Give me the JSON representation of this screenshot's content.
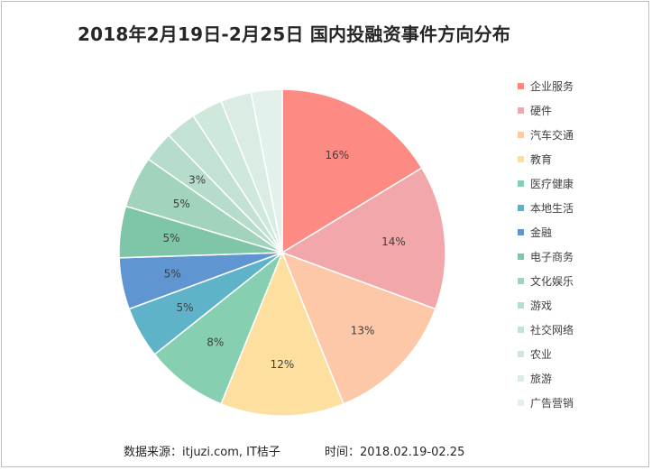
{
  "title": "2018年2月19日-2月25日  国内投融资事件方向分布",
  "footer": {
    "source": "数据来源：itjuzi.com, IT桔子",
    "time": "时间：2018.02.19-02.25"
  },
  "chart_data": {
    "type": "pie",
    "title": "2018年2月19日-2月25日  国内投融资事件方向分布",
    "legend_position": "right",
    "start_angle": "12 o'clock, clockwise",
    "categories": [
      "企业服务",
      "硬件",
      "汽车交通",
      "教育",
      "医疗健康",
      "本地生活",
      "金融",
      "电子商务",
      "文化娱乐",
      "游戏",
      "社交网络",
      "农业",
      "旅游",
      "广告营销"
    ],
    "values": [
      16,
      14,
      13,
      12,
      8,
      5,
      5,
      5,
      5,
      3,
      3,
      3,
      3,
      3
    ],
    "labels": [
      "16%",
      "14%",
      "13%",
      "12%",
      "8%",
      "5%",
      "5%",
      "5%",
      "5%",
      "3%",
      "",
      "",
      "",
      ""
    ],
    "colors": [
      "#fe8a84",
      "#f2a7aa",
      "#fdc8a8",
      "#fde0a0",
      "#86cfb0",
      "#5fb3c8",
      "#5f95d0",
      "#7fc6a8",
      "#a2d3bc",
      "#b6dccb",
      "#c3e2d3",
      "#cfe8dc",
      "#dbece4",
      "#e3f1ec"
    ]
  }
}
